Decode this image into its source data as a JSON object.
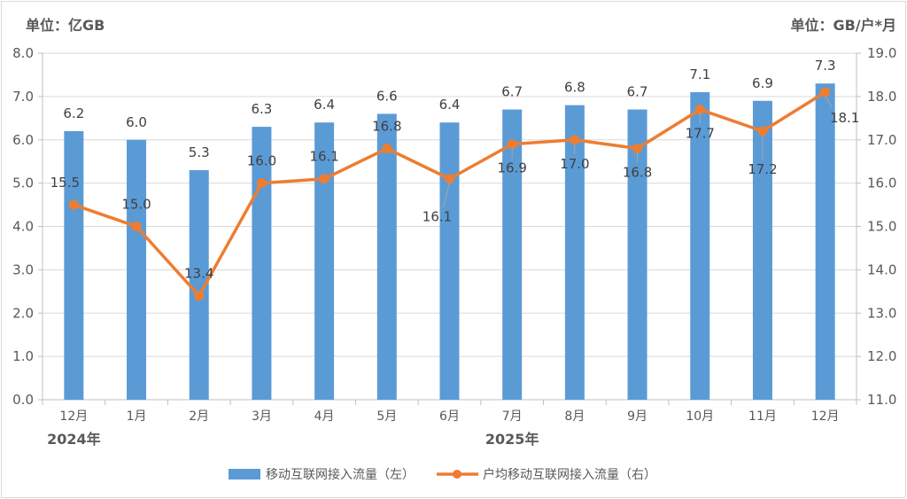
{
  "chart_data": {
    "type": "bar+line",
    "title": "",
    "unit_left": "单位：亿GB",
    "unit_right": "单位：GB/户*月",
    "categories": [
      "12月",
      "1月",
      "2月",
      "3月",
      "4月",
      "5月",
      "6月",
      "7月",
      "8月",
      "9月",
      "10月",
      "11月",
      "12月"
    ],
    "year_labels": [
      {
        "label": "2024年",
        "index": 0
      },
      {
        "label": "2025年",
        "index": 7
      }
    ],
    "series": [
      {
        "name": "移动互联网接入流量（左）",
        "type": "bar",
        "axis": "left",
        "color": "#5b9bd5",
        "values": [
          6.2,
          6.0,
          5.3,
          6.3,
          6.4,
          6.6,
          6.4,
          6.7,
          6.8,
          6.7,
          7.1,
          6.9,
          7.3
        ]
      },
      {
        "name": "户均移动互联网接入流量（右）",
        "type": "line",
        "axis": "right",
        "color": "#ed7d31",
        "values": [
          15.5,
          15.0,
          13.4,
          16.0,
          16.1,
          16.8,
          16.1,
          16.9,
          17.0,
          16.8,
          17.7,
          17.2,
          18.1
        ]
      }
    ],
    "y_left": {
      "min": 0,
      "max": 8,
      "step": 1,
      "ticks": [
        "0.0",
        "1.0",
        "2.0",
        "3.0",
        "4.0",
        "5.0",
        "6.0",
        "7.0",
        "8.0"
      ]
    },
    "y_right": {
      "min": 11,
      "max": 19,
      "step": 1,
      "ticks": [
        "11.0",
        "12.0",
        "13.0",
        "14.0",
        "15.0",
        "16.0",
        "17.0",
        "18.0",
        "19.0"
      ]
    },
    "grid": true,
    "legend_position": "bottom"
  },
  "labels": {
    "unit_left": "单位：亿GB",
    "unit_right": "单位：GB/户*月",
    "legend_bar": "移动互联网接入流量（左）",
    "legend_line": "户均移动互联网接入流量（右）"
  }
}
